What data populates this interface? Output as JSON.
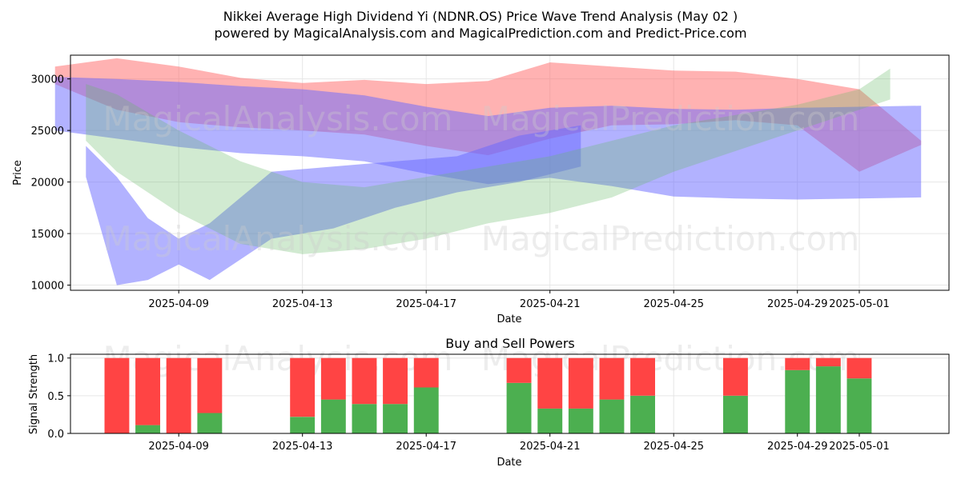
{
  "header": {
    "title_line1": "Nikkei Average High Dividend Yi (NDNR.OS) Price Wave Trend Analysis (May 02 )",
    "title_line2": "powered by MagicalAnalysis.com and MagicalPrediction.com and Predict-Price.com"
  },
  "watermarks": [
    "MagicalAnalysis.com",
    "MagicalPrediction.com"
  ],
  "colors": {
    "red_band": "#ff6666",
    "blue_band": "#6666ff",
    "green_band": "#66bb66",
    "buy": "#4caf50",
    "sell": "#ff4444"
  },
  "chart_data": [
    {
      "type": "area",
      "xlabel": "Date",
      "ylabel": "Price",
      "x_ticks": [
        "2025-04-09",
        "2025-04-13",
        "2025-04-17",
        "2025-04-21",
        "2025-04-25",
        "2025-04-29",
        "2025-05-01"
      ],
      "y_ticks": [
        10000,
        15000,
        20000,
        25000,
        30000
      ],
      "xlim": [
        "2025-04-05",
        "2025-05-03"
      ],
      "ylim": [
        9500,
        32300
      ],
      "grid": true,
      "bands": [
        {
          "color": "red",
          "x": [
            "2025-04-05",
            "2025-04-07",
            "2025-04-09",
            "2025-04-11",
            "2025-04-13",
            "2025-04-15",
            "2025-04-17",
            "2025-04-19",
            "2025-04-21",
            "2025-04-23",
            "2025-04-25",
            "2025-04-27",
            "2025-04-29",
            "2025-05-01",
            "2025-05-03"
          ],
          "upper": [
            31200,
            32000,
            31200,
            30100,
            29600,
            29900,
            29500,
            29800,
            31600,
            31200,
            30800,
            30700,
            30000,
            29000,
            24000
          ],
          "lower": [
            29500,
            27000,
            25800,
            25300,
            25000,
            24600,
            23500,
            22600,
            24200,
            25500,
            25600,
            26000,
            25500,
            21000,
            23600
          ]
        },
        {
          "color": "blue",
          "x": [
            "2025-04-05",
            "2025-04-07",
            "2025-04-09",
            "2025-04-11",
            "2025-04-13",
            "2025-04-15",
            "2025-04-17",
            "2025-04-19",
            "2025-04-21",
            "2025-04-23",
            "2025-04-25",
            "2025-04-27",
            "2025-04-29",
            "2025-05-01",
            "2025-05-03"
          ],
          "upper": [
            30200,
            30000,
            29700,
            29300,
            29000,
            28400,
            27300,
            26400,
            27200,
            27400,
            27100,
            27000,
            27200,
            27300,
            27400
          ],
          "lower": [
            25000,
            24200,
            23400,
            22800,
            22500,
            22000,
            20800,
            19800,
            20400,
            19600,
            18600,
            18400,
            18300,
            18400,
            18500
          ]
        },
        {
          "color": "blue",
          "x": [
            "2025-04-06",
            "2025-04-07",
            "2025-04-08",
            "2025-04-09",
            "2025-04-10",
            "2025-04-12",
            "2025-04-14",
            "2025-04-16",
            "2025-04-18",
            "2025-04-20",
            "2025-04-22"
          ],
          "upper": [
            23500,
            20500,
            16500,
            14500,
            16000,
            21000,
            21500,
            22000,
            22500,
            24500,
            25500
          ],
          "lower": [
            20500,
            10000,
            10500,
            12000,
            10500,
            14500,
            15500,
            17500,
            19000,
            20000,
            21500
          ]
        },
        {
          "color": "green",
          "x": [
            "2025-04-06",
            "2025-04-07",
            "2025-04-09",
            "2025-04-11",
            "2025-04-13",
            "2025-04-15",
            "2025-04-17",
            "2025-04-19",
            "2025-04-21",
            "2025-04-23",
            "2025-04-25",
            "2025-04-27",
            "2025-04-29",
            "2025-05-01",
            "2025-05-02"
          ],
          "upper": [
            29500,
            28500,
            25000,
            22000,
            20000,
            19500,
            20500,
            21500,
            22500,
            24000,
            25500,
            26500,
            27500,
            29000,
            31000
          ],
          "lower": [
            24000,
            21000,
            17000,
            14000,
            13000,
            13500,
            14500,
            16000,
            17000,
            18500,
            21000,
            23000,
            25000,
            27000,
            28000
          ]
        }
      ]
    },
    {
      "type": "bar",
      "title": "Buy and Sell Powers",
      "xlabel": "Date",
      "ylabel": "Signal Strength",
      "x_ticks": [
        "2025-04-09",
        "2025-04-13",
        "2025-04-17",
        "2025-04-21",
        "2025-04-25",
        "2025-04-29",
        "2025-05-01"
      ],
      "y_ticks": [
        "0.0",
        "0.5",
        "1.0"
      ],
      "ylim": [
        0,
        1.05
      ],
      "categories": [
        "2025-04-07",
        "2025-04-08",
        "2025-04-09",
        "2025-04-10",
        "2025-04-13",
        "2025-04-14",
        "2025-04-15",
        "2025-04-16",
        "2025-04-17",
        "2025-04-20",
        "2025-04-21",
        "2025-04-22",
        "2025-04-23",
        "2025-04-24",
        "2025-04-27",
        "2025-04-29",
        "2025-04-30",
        "2025-05-01"
      ],
      "series": [
        {
          "name": "Buy",
          "values": [
            0.0,
            0.11,
            0.0,
            0.27,
            0.22,
            0.45,
            0.39,
            0.39,
            0.61,
            0.67,
            0.33,
            0.33,
            0.45,
            0.5,
            0.5,
            0.84,
            0.89,
            0.73
          ]
        },
        {
          "name": "Sell",
          "values": [
            1.0,
            0.89,
            1.0,
            0.73,
            0.78,
            0.55,
            0.61,
            0.61,
            0.39,
            0.33,
            0.67,
            0.67,
            0.55,
            0.5,
            0.5,
            0.16,
            0.11,
            0.27
          ]
        }
      ]
    }
  ]
}
